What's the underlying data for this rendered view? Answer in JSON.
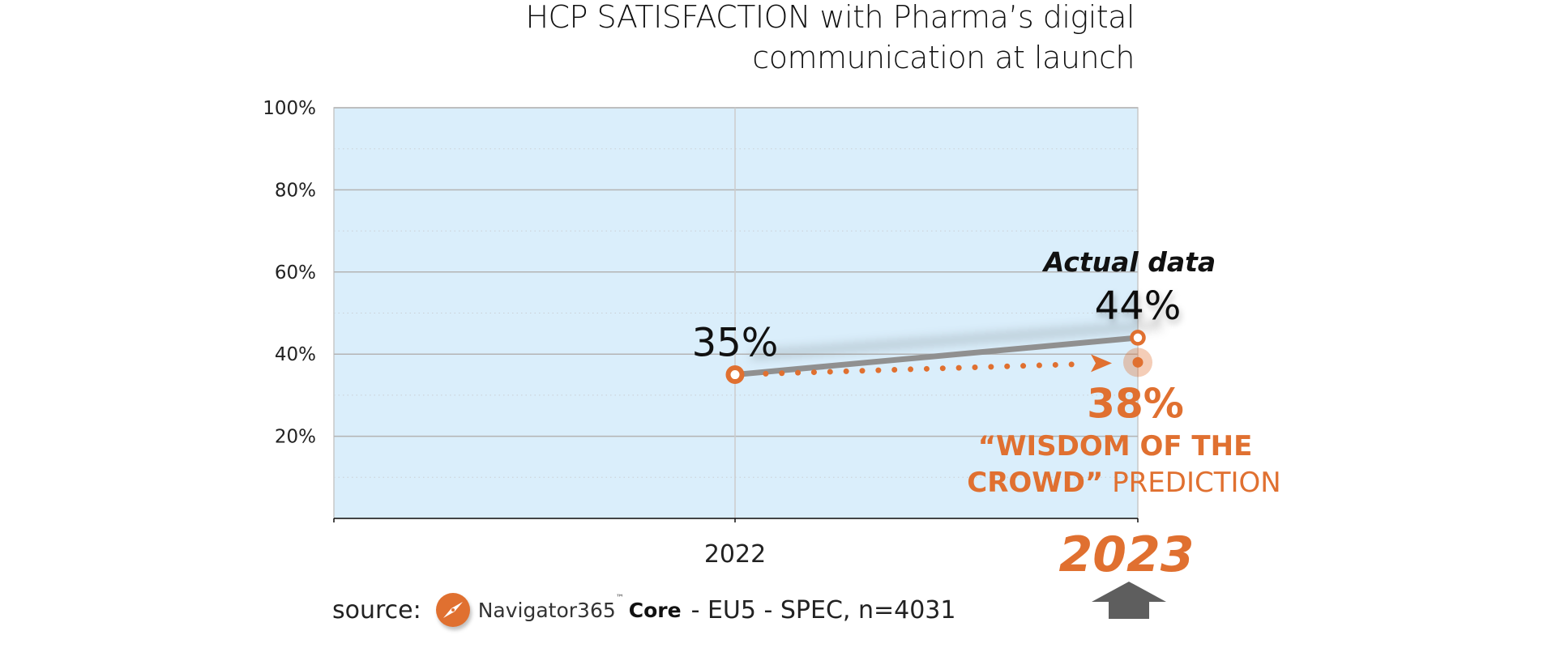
{
  "title": {
    "line1": "HCP SATISFACTION with Pharma’s digital",
    "line2": "communication at launch"
  },
  "chart_data": {
    "type": "line",
    "title": "HCP SATISFACTION with Pharma’s digital communication at launch",
    "xlabel": "",
    "ylabel": "",
    "categories": [
      "2022",
      "2023"
    ],
    "highlighted_category": "2023",
    "ylim": [
      0,
      100
    ],
    "yticks": [
      20,
      40,
      60,
      80,
      100
    ],
    "ytick_labels": [
      "20%",
      "40%",
      "60%",
      "80%",
      "100%"
    ],
    "grid": {
      "major": true,
      "minor_dotted": true,
      "vertical": true
    },
    "series": [
      {
        "name": "Actual data",
        "values": [
          35,
          44
        ],
        "labels": [
          "35%",
          "44%"
        ],
        "color": "#909090",
        "marker_color": "#e07030"
      },
      {
        "name": "“WISDOM OF THE CROWD” PREDICTION",
        "values": [
          35,
          38
        ],
        "labels": [
          "",
          "38%"
        ],
        "color": "#e07030",
        "style": "dotted-arrow"
      }
    ],
    "annotations": {
      "actual_label": "Actual data",
      "prediction_value": "38%",
      "prediction_line1": "“WISDOM OF THE",
      "prediction_line2_bold": "CROWD”",
      "prediction_line2_rest": " PREDICTION"
    },
    "background_color": "#daeefb",
    "accent_color": "#e07030"
  },
  "source": {
    "prefix": "source:",
    "brand": "Navigator365",
    "tm": "™",
    "product": "Core",
    "rest": "- EU5 - SPEC, n=4031",
    "logo_icon": "compass-icon"
  },
  "marker_icon": "up-arrow-icon"
}
